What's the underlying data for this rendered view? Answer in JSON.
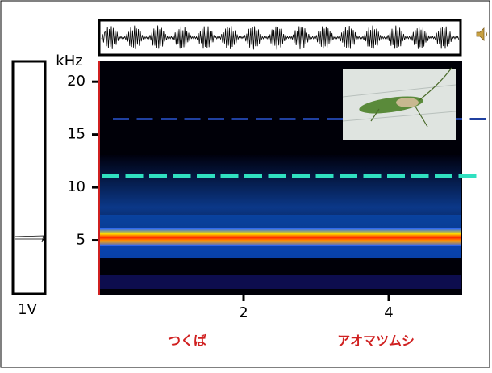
{
  "chart_data": {
    "type": "spectrogram",
    "y_label": "kHz",
    "ylim": [
      0,
      22
    ],
    "yticks": [
      5,
      10,
      15,
      20
    ],
    "xlim": [
      0,
      5
    ],
    "xticks": [
      2,
      4
    ],
    "scale_label": "1V",
    "annotations": [
      "つくば",
      "アオマツムシ"
    ]
  }
}
